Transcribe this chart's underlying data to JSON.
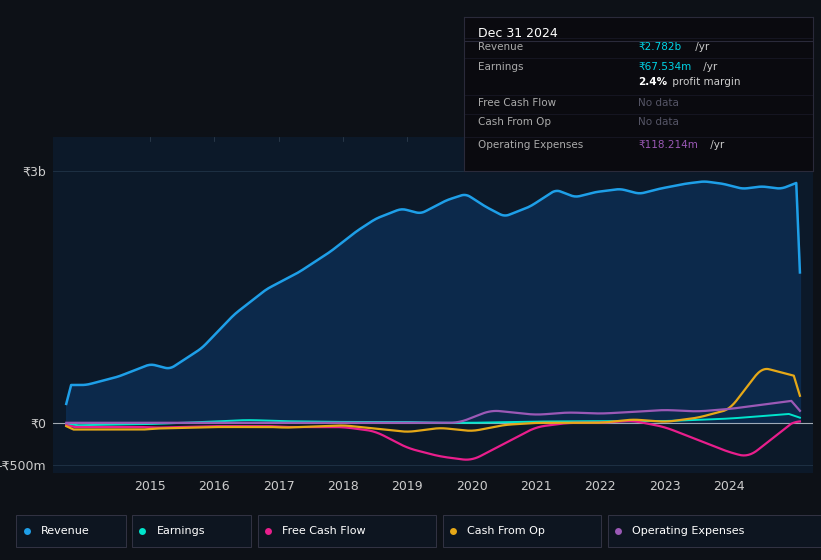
{
  "bg_color": "#0d1117",
  "plot_bg_color": "#0c1929",
  "ylim": [
    -600000000,
    3400000000
  ],
  "yticks": [
    -500000000,
    0,
    3000000000
  ],
  "ytick_labels": [
    "-₹500m",
    "₹0",
    "₹3b"
  ],
  "xticks": [
    2015,
    2016,
    2017,
    2018,
    2019,
    2020,
    2021,
    2022,
    2023,
    2024
  ],
  "xlim": [
    2013.5,
    2025.3
  ],
  "line_colors": {
    "Revenue": "#1e9fe8",
    "Earnings": "#00e5cc",
    "FreeCashFlow": "#e91e8c",
    "CashFromOp": "#e6a817",
    "OperatingExpenses": "#9b59b6"
  },
  "fill_color": "#0d2d52",
  "fill_alpha": 0.85,
  "info_box": {
    "title": "Dec 31 2024"
  }
}
